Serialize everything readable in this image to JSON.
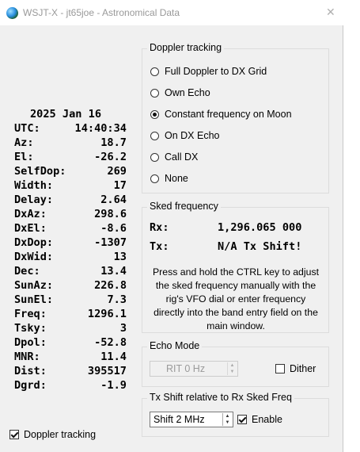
{
  "window": {
    "title": "WSJT-X - jt65joe - Astronomical Data",
    "close_glyph": "✕"
  },
  "astro": {
    "date": "2025 Jan 16",
    "rows": [
      {
        "label": "UTC:",
        "value": "14:40:34"
      },
      {
        "label": "Az:",
        "value": "18.7"
      },
      {
        "label": "El:",
        "value": "-26.2"
      },
      {
        "label": "SelfDop:",
        "value": "269"
      },
      {
        "label": "Width:",
        "value": "17"
      },
      {
        "label": "Delay:",
        "value": "2.64"
      },
      {
        "label": "DxAz:",
        "value": "298.6"
      },
      {
        "label": "DxEl:",
        "value": "-8.6"
      },
      {
        "label": "DxDop:",
        "value": "-1307"
      },
      {
        "label": "DxWid:",
        "value": "13"
      },
      {
        "label": "Dec:",
        "value": "13.4"
      },
      {
        "label": "SunAz:",
        "value": "226.8"
      },
      {
        "label": "SunEl:",
        "value": "7.3"
      },
      {
        "label": "Freq:",
        "value": "1296.1"
      },
      {
        "label": "Tsky:",
        "value": "3"
      },
      {
        "label": "Dpol:",
        "value": "-52.8"
      },
      {
        "label": "MNR:",
        "value": "11.4"
      },
      {
        "label": "Dist:",
        "value": "395517"
      },
      {
        "label": "Dgrd:",
        "value": "-1.9"
      }
    ]
  },
  "doppler": {
    "title": "Doppler tracking",
    "options": [
      {
        "label": "Full Doppler to DX Grid",
        "selected": false
      },
      {
        "label": "Own Echo",
        "selected": false
      },
      {
        "label": "Constant frequency on Moon",
        "selected": true
      },
      {
        "label": "On DX Echo",
        "selected": false
      },
      {
        "label": "Call DX",
        "selected": false
      },
      {
        "label": "None",
        "selected": false
      }
    ]
  },
  "sked": {
    "title": "Sked frequency",
    "rx_label": "Rx:",
    "rx_value": "1,296.065 000",
    "tx_label": "Tx:",
    "tx_value": "N/A Tx Shift!",
    "help": "Press and hold the CTRL key to adjust the sked frequency manually with the rig's VFO dial or enter frequency directly into the band entry field on the main window."
  },
  "echo": {
    "title": "Echo Mode",
    "rit_value": "RIT  0  Hz",
    "dither_label": "Dither",
    "dither_checked": false
  },
  "txshift": {
    "title": "Tx Shift relative to Rx Sked Freq",
    "shift_value": "Shift 2 MHz",
    "enable_label": "Enable",
    "enable_checked": true
  },
  "footer": {
    "doppler_label": "Doppler tracking",
    "doppler_checked": true
  }
}
